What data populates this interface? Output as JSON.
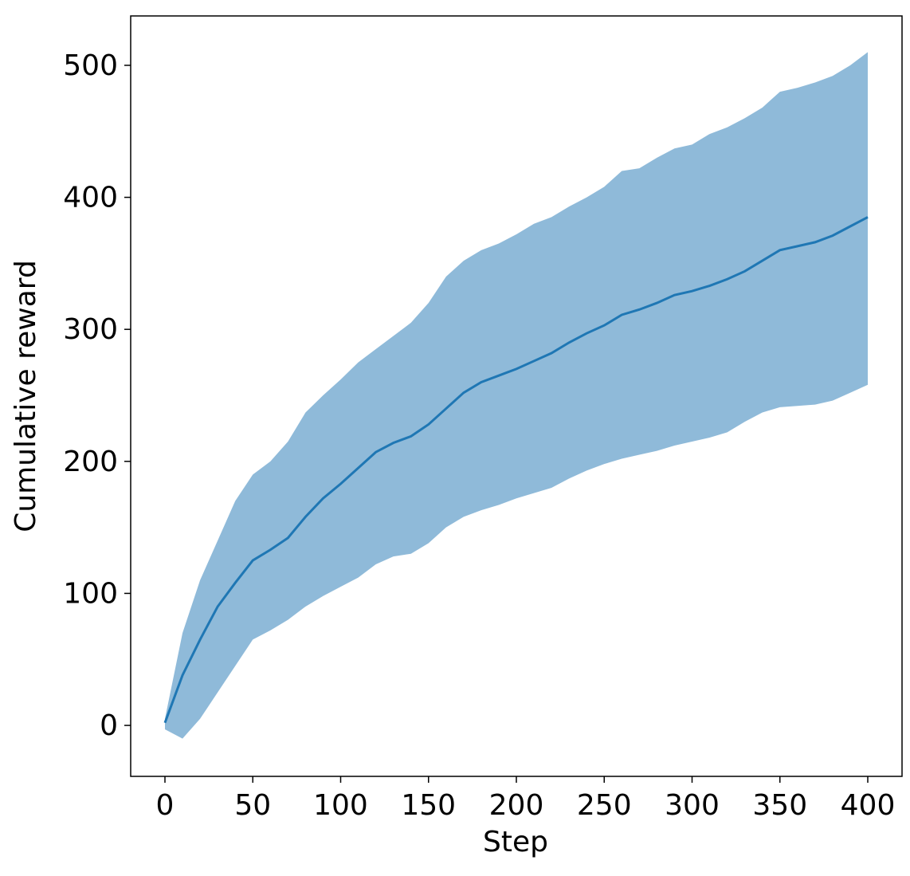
{
  "chart_data": {
    "type": "line",
    "xlabel": "Step",
    "ylabel": "Cumulative reward",
    "x": [
      0,
      10,
      20,
      30,
      40,
      50,
      60,
      70,
      80,
      90,
      100,
      110,
      120,
      130,
      140,
      150,
      160,
      170,
      180,
      190,
      200,
      210,
      220,
      230,
      240,
      250,
      260,
      270,
      280,
      290,
      300,
      310,
      320,
      330,
      340,
      350,
      360,
      370,
      380,
      390,
      400
    ],
    "values": [
      2,
      38,
      65,
      90,
      108,
      125,
      133,
      142,
      158,
      172,
      183,
      195,
      207,
      214,
      219,
      228,
      240,
      252,
      260,
      265,
      270,
      276,
      282,
      290,
      297,
      303,
      311,
      315,
      320,
      326,
      329,
      333,
      338,
      344,
      352,
      360,
      363,
      366,
      371,
      378,
      385
    ],
    "color": "#1f77b4",
    "band": {
      "color": "#8fbad9",
      "upper": [
        5,
        70,
        110,
        140,
        170,
        190,
        200,
        215,
        237,
        250,
        262,
        275,
        285,
        295,
        305,
        320,
        340,
        352,
        360,
        365,
        372,
        380,
        385,
        393,
        400,
        408,
        420,
        422,
        430,
        437,
        440,
        448,
        453,
        460,
        468,
        480,
        483,
        487,
        492,
        500,
        510
      ],
      "lower": [
        -3,
        -10,
        5,
        25,
        45,
        65,
        72,
        80,
        90,
        98,
        105,
        112,
        122,
        128,
        130,
        138,
        150,
        158,
        163,
        167,
        172,
        176,
        180,
        187,
        193,
        198,
        202,
        205,
        208,
        212,
        215,
        218,
        222,
        230,
        237,
        241,
        242,
        243,
        246,
        252,
        258
      ]
    },
    "xlim": [
      -19.5,
      419.5
    ],
    "xticks": [
      0,
      50,
      100,
      150,
      200,
      250,
      300,
      350,
      400
    ],
    "ylim": [
      -38.6,
      537.4
    ],
    "yticks": [
      0,
      100,
      200,
      300,
      400,
      500
    ]
  }
}
